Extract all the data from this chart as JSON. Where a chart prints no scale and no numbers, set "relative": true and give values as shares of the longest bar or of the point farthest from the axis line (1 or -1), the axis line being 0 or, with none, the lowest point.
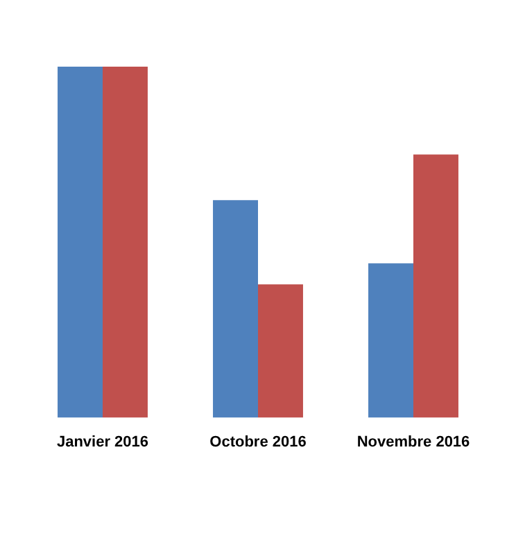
{
  "chart_data": {
    "type": "bar",
    "relative": true,
    "categories": [
      "Janvier 2016",
      "Octobre 2016",
      "Novembre 2016"
    ],
    "series": [
      {
        "color": "#4f81bd",
        "values": [
          1,
          0.62,
          0.44
        ]
      },
      {
        "color": "#c0504d",
        "values": [
          1,
          0.38,
          0.75
        ]
      }
    ],
    "grid": false,
    "legend": false
  }
}
